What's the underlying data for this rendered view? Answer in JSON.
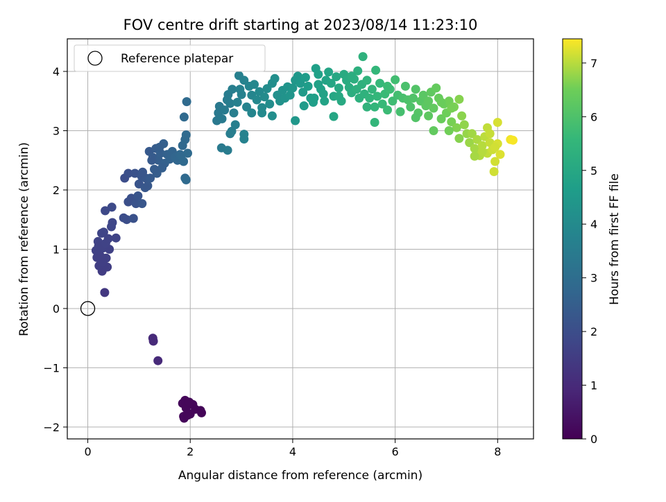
{
  "chart_data": {
    "type": "scatter",
    "title": "FOV centre drift starting at 2023/08/14 11:23:10",
    "xlabel": "Angular distance from reference (arcmin)",
    "ylabel": "Rotation from reference (arcmin)",
    "colorbar_label": "Hours from first FF file",
    "xlim": [
      -0.4,
      8.7
    ],
    "ylim": [
      -2.2,
      4.55
    ],
    "xticks": [
      0,
      2,
      4,
      6,
      8
    ],
    "yticks": [
      -2,
      -1,
      0,
      1,
      2,
      3,
      4
    ],
    "xtick_labels": [
      "0",
      "2",
      "4",
      "6",
      "8"
    ],
    "ytick_labels": [
      "−2",
      "−1",
      "0",
      "1",
      "2",
      "3",
      "4"
    ],
    "colorbar_ticks": [
      0,
      1,
      2,
      3,
      4,
      5,
      6,
      7
    ],
    "colorbar_tick_labels": [
      "0",
      "1",
      "2",
      "3",
      "4",
      "5",
      "6",
      "7"
    ],
    "colorbar_range": [
      0,
      7.45
    ],
    "colormap": "viridis",
    "grid": true,
    "legend": {
      "position": "top-left",
      "entries": [
        "Reference platepar"
      ]
    },
    "reference_point": {
      "name": "Reference platepar",
      "x": 0,
      "y": 0
    },
    "series": [
      {
        "columns": [
          "x",
          "y",
          "hours"
        ],
        "points": [
          [
            1.88,
            -1.85
          ],
          [
            1.87,
            -1.82
          ],
          [
            1.9,
            -1.55
          ],
          [
            2.05,
            -1.62
          ],
          [
            2.1,
            -1.7
          ],
          [
            2.2,
            -1.72
          ],
          [
            1.85,
            -1.6
          ],
          [
            2.0,
            -1.78
          ],
          [
            2.22,
            -1.76
          ],
          [
            1.95,
            -1.8
          ],
          [
            1.92,
            -1.68
          ],
          [
            1.98,
            -1.58
          ],
          [
            1.27,
            -0.5
          ],
          [
            1.28,
            -0.55
          ],
          [
            1.37,
            -0.88
          ],
          [
            0.33,
            0.27
          ],
          [
            0.28,
            0.63
          ],
          [
            0.22,
            0.72
          ],
          [
            0.36,
            0.85
          ],
          [
            0.18,
            0.86
          ],
          [
            0.24,
            0.99
          ],
          [
            0.3,
            1.02
          ],
          [
            0.2,
            1.13
          ],
          [
            0.27,
            1.27
          ],
          [
            0.31,
            1.29
          ],
          [
            0.42,
            1.0
          ],
          [
            0.4,
            1.18
          ],
          [
            0.46,
            1.38
          ],
          [
            0.48,
            1.45
          ],
          [
            0.34,
            1.65
          ],
          [
            0.47,
            1.71
          ],
          [
            0.55,
            1.19
          ],
          [
            0.25,
            0.88
          ],
          [
            0.38,
            0.7
          ],
          [
            0.16,
            0.98
          ],
          [
            0.29,
            0.78
          ],
          [
            0.21,
            1.05
          ],
          [
            0.35,
            1.1
          ],
          [
            0.7,
            1.53
          ],
          [
            0.76,
            1.5
          ],
          [
            0.89,
            1.52
          ],
          [
            0.79,
            1.8
          ],
          [
            0.85,
            1.86
          ],
          [
            0.94,
            1.77
          ],
          [
            1.06,
            1.77
          ],
          [
            0.72,
            2.2
          ],
          [
            0.79,
            2.28
          ],
          [
            0.92,
            2.28
          ],
          [
            1.0,
            2.1
          ],
          [
            1.05,
            2.23
          ],
          [
            1.13,
            2.2
          ],
          [
            1.17,
            2.07
          ],
          [
            1.22,
            2.2
          ],
          [
            1.12,
            2.04
          ],
          [
            1.07,
            2.3
          ],
          [
            0.98,
            1.9
          ],
          [
            1.2,
            2.65
          ],
          [
            1.27,
            2.55
          ],
          [
            1.33,
            2.7
          ],
          [
            1.38,
            2.5
          ],
          [
            1.42,
            2.62
          ],
          [
            1.48,
            2.78
          ],
          [
            1.55,
            2.6
          ],
          [
            1.5,
            2.45
          ],
          [
            1.45,
            2.37
          ],
          [
            1.35,
            2.28
          ],
          [
            1.3,
            2.35
          ],
          [
            1.25,
            2.5
          ],
          [
            1.4,
            2.72
          ],
          [
            1.6,
            2.52
          ],
          [
            1.65,
            2.65
          ],
          [
            1.7,
            2.55
          ],
          [
            1.75,
            2.5
          ],
          [
            1.8,
            2.6
          ],
          [
            1.85,
            2.75
          ],
          [
            1.9,
            2.85
          ],
          [
            1.92,
            2.93
          ],
          [
            1.88,
            3.23
          ],
          [
            1.93,
            3.49
          ],
          [
            1.9,
            2.2
          ],
          [
            1.92,
            2.17
          ],
          [
            1.82,
            2.58
          ],
          [
            1.95,
            2.62
          ],
          [
            1.87,
            2.48
          ],
          [
            2.52,
            3.17
          ],
          [
            2.55,
            3.3
          ],
          [
            2.57,
            3.41
          ],
          [
            2.62,
            3.2
          ],
          [
            2.67,
            3.35
          ],
          [
            2.72,
            3.52
          ],
          [
            2.74,
            3.61
          ],
          [
            2.78,
            3.46
          ],
          [
            2.82,
            3.7
          ],
          [
            2.85,
            3.3
          ],
          [
            2.88,
            3.1
          ],
          [
            2.78,
            2.95
          ],
          [
            2.81,
            2.99
          ],
          [
            2.61,
            2.71
          ],
          [
            2.73,
            2.67
          ],
          [
            2.92,
            3.48
          ],
          [
            2.97,
            3.7
          ],
          [
            3.0,
            3.61
          ],
          [
            3.05,
            3.85
          ],
          [
            3.1,
            3.4
          ],
          [
            3.15,
            3.75
          ],
          [
            3.2,
            3.6
          ],
          [
            3.25,
            3.78
          ],
          [
            3.3,
            3.52
          ],
          [
            3.35,
            3.66
          ],
          [
            3.4,
            3.39
          ],
          [
            3.45,
            3.57
          ],
          [
            3.5,
            3.71
          ],
          [
            3.55,
            3.45
          ],
          [
            3.6,
            3.8
          ],
          [
            3.65,
            3.88
          ],
          [
            3.7,
            3.6
          ],
          [
            3.75,
            3.5
          ],
          [
            3.8,
            3.68
          ],
          [
            3.85,
            3.55
          ],
          [
            3.05,
            2.94
          ],
          [
            3.05,
            2.86
          ],
          [
            2.95,
            3.93
          ],
          [
            3.2,
            3.3
          ],
          [
            3.6,
            3.25
          ],
          [
            3.4,
            3.3
          ],
          [
            3.9,
            3.74
          ],
          [
            3.95,
            3.6
          ],
          [
            4.0,
            3.72
          ],
          [
            4.05,
            3.85
          ],
          [
            4.1,
            3.92
          ],
          [
            4.15,
            3.8
          ],
          [
            4.2,
            3.65
          ],
          [
            4.25,
            3.9
          ],
          [
            4.3,
            3.75
          ],
          [
            4.35,
            3.55
          ],
          [
            4.4,
            3.48
          ],
          [
            4.45,
            4.05
          ],
          [
            4.5,
            3.95
          ],
          [
            4.55,
            3.7
          ],
          [
            4.6,
            3.62
          ],
          [
            4.65,
            3.85
          ],
          [
            4.7,
            3.99
          ],
          [
            4.75,
            3.8
          ],
          [
            4.8,
            3.58
          ],
          [
            4.85,
            3.91
          ],
          [
            4.9,
            3.72
          ],
          [
            4.95,
            3.5
          ],
          [
            5.0,
            3.95
          ],
          [
            5.05,
            3.85
          ],
          [
            5.1,
            3.73
          ],
          [
            5.15,
            3.64
          ],
          [
            5.2,
            3.87
          ],
          [
            5.25,
            3.7
          ],
          [
            5.3,
            3.55
          ],
          [
            5.35,
            3.78
          ],
          [
            5.4,
            3.62
          ],
          [
            5.45,
            3.85
          ],
          [
            5.5,
            3.55
          ],
          [
            5.55,
            3.7
          ],
          [
            5.6,
            3.4
          ],
          [
            5.65,
            3.58
          ],
          [
            5.7,
            3.8
          ],
          [
            5.75,
            3.45
          ],
          [
            5.8,
            3.62
          ],
          [
            5.85,
            3.35
          ],
          [
            5.9,
            3.7
          ],
          [
            5.95,
            3.5
          ],
          [
            6.0,
            3.86
          ],
          [
            6.05,
            3.6
          ],
          [
            6.1,
            3.32
          ],
          [
            6.15,
            3.55
          ],
          [
            5.37,
            4.25
          ],
          [
            5.6,
            3.14
          ],
          [
            4.05,
            3.17
          ],
          [
            4.8,
            3.24
          ],
          [
            5.27,
            4.01
          ],
          [
            5.62,
            4.02
          ],
          [
            4.22,
            3.42
          ],
          [
            4.42,
            3.55
          ],
          [
            4.62,
            3.5
          ],
          [
            5.15,
            3.92
          ],
          [
            5.45,
            3.4
          ],
          [
            5.85,
            3.75
          ],
          [
            4.5,
            3.78
          ],
          [
            4.9,
            3.58
          ],
          [
            6.2,
            3.75
          ],
          [
            6.25,
            3.52
          ],
          [
            6.3,
            3.4
          ],
          [
            6.35,
            3.55
          ],
          [
            6.4,
            3.7
          ],
          [
            6.45,
            3.3
          ],
          [
            6.5,
            3.5
          ],
          [
            6.55,
            3.6
          ],
          [
            6.6,
            3.42
          ],
          [
            6.65,
            3.25
          ],
          [
            6.7,
            3.65
          ],
          [
            6.75,
            3.38
          ],
          [
            6.8,
            3.72
          ],
          [
            6.85,
            3.55
          ],
          [
            6.9,
            3.2
          ],
          [
            6.95,
            3.45
          ],
          [
            7.0,
            3.3
          ],
          [
            7.05,
            3.5
          ],
          [
            7.1,
            3.15
          ],
          [
            7.15,
            3.4
          ],
          [
            7.2,
            3.05
          ],
          [
            7.25,
            3.53
          ],
          [
            7.3,
            3.25
          ],
          [
            7.35,
            3.1
          ],
          [
            7.4,
            2.95
          ],
          [
            6.4,
            3.22
          ],
          [
            6.75,
            3.0
          ],
          [
            7.05,
            3.0
          ],
          [
            7.25,
            2.87
          ],
          [
            6.9,
            3.48
          ],
          [
            6.65,
            3.5
          ],
          [
            7.1,
            3.38
          ],
          [
            7.45,
            2.8
          ],
          [
            7.5,
            2.95
          ],
          [
            7.55,
            2.7
          ],
          [
            7.6,
            2.85
          ],
          [
            7.65,
            2.58
          ],
          [
            7.7,
            2.75
          ],
          [
            7.75,
            2.9
          ],
          [
            7.8,
            2.62
          ],
          [
            7.85,
            2.8
          ],
          [
            7.9,
            2.68
          ],
          [
            7.95,
            2.48
          ],
          [
            8.0,
            2.78
          ],
          [
            8.05,
            2.6
          ],
          [
            7.8,
            3.05
          ],
          [
            7.85,
            2.95
          ],
          [
            8.0,
            3.14
          ],
          [
            8.25,
            2.85
          ],
          [
            8.3,
            2.84
          ],
          [
            7.93,
            2.31
          ],
          [
            7.55,
            2.57
          ],
          [
            7.7,
            2.65
          ],
          [
            7.95,
            2.72
          ]
        ]
      }
    ]
  }
}
